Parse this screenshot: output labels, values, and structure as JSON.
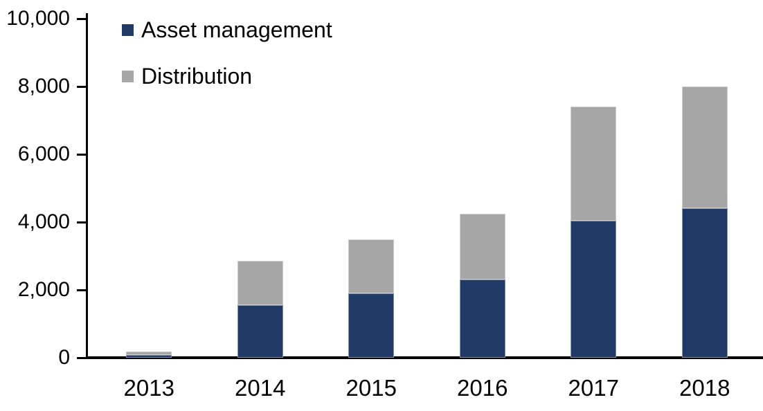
{
  "chart_data": {
    "type": "bar",
    "stacked": true,
    "title": "",
    "xlabel": "",
    "ylabel": "",
    "categories": [
      "2013",
      "2014",
      "2015",
      "2016",
      "2017",
      "2018"
    ],
    "series": [
      {
        "name": "Asset management",
        "color": "#1f3a64",
        "values": [
          75,
          1550,
          1900,
          2300,
          4050,
          4400
        ]
      },
      {
        "name": "Distribution",
        "color": "#a6a6a6",
        "values": [
          100,
          1300,
          1600,
          1950,
          3350,
          3600
        ]
      }
    ],
    "totals": [
      175,
      2850,
      3500,
      4250,
      7400,
      8000
    ],
    "ylim": [
      0,
      10000
    ],
    "ytick_step": 2000,
    "ytick_labels": [
      "0",
      "2,000",
      "4,000",
      "6,000",
      "8,000",
      "10,000"
    ],
    "grid": false,
    "legend_position": "top-left-inside",
    "axis_color": "#000000",
    "background_color": "#ffffff"
  }
}
